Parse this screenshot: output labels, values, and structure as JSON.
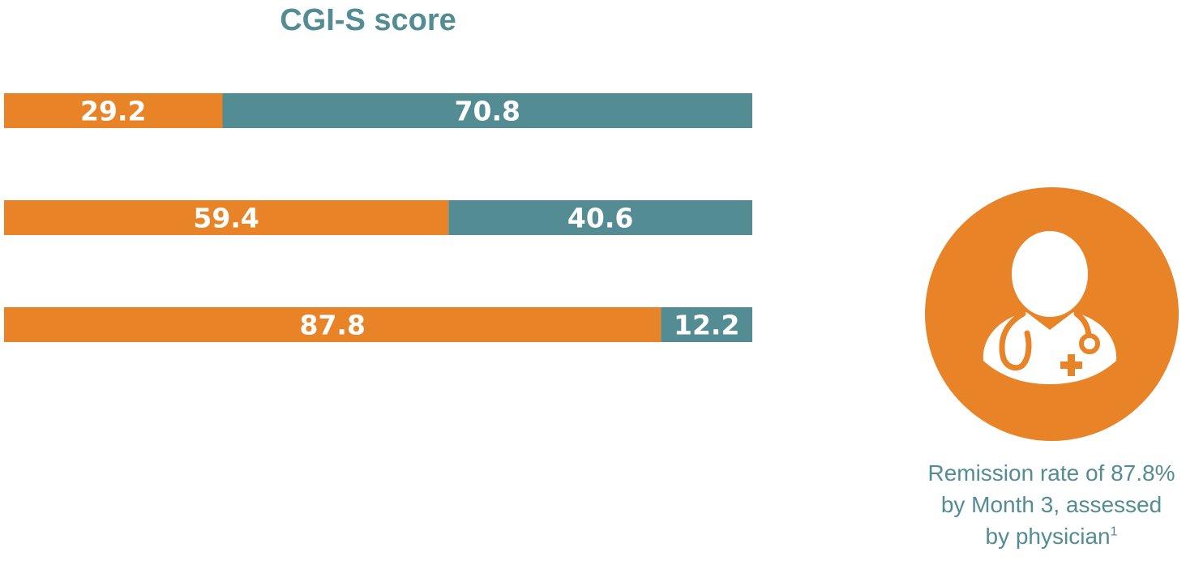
{
  "chart_data": {
    "type": "bar",
    "orientation": "horizontal",
    "stacked": true,
    "normalized_to": 100,
    "title": "CGI-S score",
    "categories": [
      "",
      "",
      ""
    ],
    "series": [
      {
        "values": [
          29.2,
          59.4,
          87.8
        ],
        "labels": [
          "29.2",
          "59.4",
          "87.8"
        ],
        "color": "#e88327"
      },
      {
        "values": [
          70.8,
          40.6,
          12.2
        ],
        "labels": [
          "70.8",
          "40.6",
          "12.2"
        ],
        "color": "#548c94"
      }
    ],
    "xlim": [
      0,
      100
    ],
    "grid": false,
    "legend": "none"
  },
  "callout": {
    "line1": "Remission rate of 87.8%",
    "line2": "by Month 3, assessed",
    "line3": "by physician",
    "footnote_mark": "1",
    "icon": "doctor-icon",
    "badge_color": "#e88327",
    "text_color": "#548c94"
  }
}
